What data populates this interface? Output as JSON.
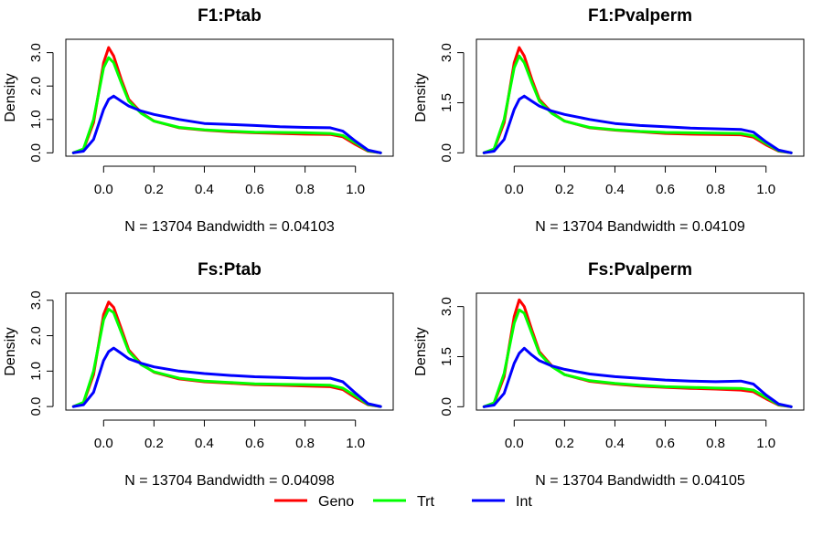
{
  "colors": {
    "Geno": "#ff0000",
    "Trt": "#00ff00",
    "Int": "#0000ff"
  },
  "legend": {
    "placement": "bottom-center",
    "entries": [
      {
        "name": "Geno",
        "color": "#ff0000"
      },
      {
        "name": "Trt",
        "color": "#00ff00"
      },
      {
        "name": "Int",
        "color": "#0000ff"
      }
    ]
  },
  "chart_data": [
    {
      "type": "line",
      "title": "F1:Ptab",
      "xlabel": "N = 13704   Bandwidth = 0.04103",
      "ylabel": "Density",
      "xlim": [
        -0.15,
        1.15
      ],
      "ylim": [
        -0.1,
        3.4
      ],
      "xticks": [
        "0.0",
        "0.2",
        "0.4",
        "0.6",
        "0.8",
        "1.0"
      ],
      "yticks": [
        "0.0",
        "1.0",
        "2.0",
        "3.0"
      ],
      "x": [
        -0.12,
        -0.08,
        -0.04,
        0.0,
        0.02,
        0.04,
        0.07,
        0.1,
        0.15,
        0.2,
        0.3,
        0.4,
        0.5,
        0.6,
        0.7,
        0.8,
        0.9,
        0.95,
        1.0,
        1.05,
        1.1
      ],
      "series": [
        {
          "name": "Geno",
          "values": [
            0.0,
            0.1,
            0.9,
            2.7,
            3.15,
            2.9,
            2.2,
            1.6,
            1.2,
            0.95,
            0.75,
            0.68,
            0.63,
            0.6,
            0.58,
            0.56,
            0.55,
            0.48,
            0.25,
            0.05,
            0.0
          ]
        },
        {
          "name": "Trt",
          "values": [
            0.0,
            0.12,
            1.0,
            2.55,
            2.85,
            2.7,
            2.1,
            1.55,
            1.18,
            0.95,
            0.76,
            0.69,
            0.65,
            0.62,
            0.61,
            0.6,
            0.58,
            0.52,
            0.3,
            0.06,
            0.0
          ]
        },
        {
          "name": "Int",
          "values": [
            0.0,
            0.05,
            0.4,
            1.3,
            1.6,
            1.7,
            1.55,
            1.4,
            1.25,
            1.15,
            1.0,
            0.88,
            0.85,
            0.82,
            0.78,
            0.76,
            0.75,
            0.65,
            0.35,
            0.08,
            0.0
          ]
        }
      ]
    },
    {
      "type": "line",
      "title": "F1:Pvalperm",
      "xlabel": "N = 13704   Bandwidth = 0.04109",
      "ylabel": "Density",
      "xlim": [
        -0.15,
        1.15
      ],
      "ylim": [
        -0.1,
        3.4
      ],
      "xticks": [
        "0.0",
        "0.2",
        "0.4",
        "0.6",
        "0.8",
        "1.0"
      ],
      "yticks": [
        "0.0",
        "1.5",
        "3.0"
      ],
      "x": [
        -0.12,
        -0.08,
        -0.04,
        0.0,
        0.02,
        0.04,
        0.07,
        0.1,
        0.15,
        0.2,
        0.3,
        0.4,
        0.5,
        0.6,
        0.7,
        0.8,
        0.9,
        0.95,
        1.0,
        1.05,
        1.1
      ],
      "series": [
        {
          "name": "Geno",
          "values": [
            0.0,
            0.1,
            0.9,
            2.7,
            3.15,
            2.9,
            2.2,
            1.6,
            1.2,
            0.95,
            0.75,
            0.68,
            0.63,
            0.58,
            0.56,
            0.55,
            0.54,
            0.47,
            0.24,
            0.05,
            0.0
          ]
        },
        {
          "name": "Trt",
          "values": [
            0.0,
            0.12,
            1.0,
            2.55,
            2.9,
            2.7,
            2.1,
            1.55,
            1.18,
            0.95,
            0.76,
            0.69,
            0.64,
            0.61,
            0.6,
            0.59,
            0.58,
            0.51,
            0.28,
            0.06,
            0.0
          ]
        },
        {
          "name": "Int",
          "values": [
            0.0,
            0.05,
            0.4,
            1.3,
            1.6,
            1.7,
            1.55,
            1.4,
            1.25,
            1.15,
            1.0,
            0.88,
            0.82,
            0.78,
            0.74,
            0.72,
            0.7,
            0.62,
            0.33,
            0.08,
            0.0
          ]
        }
      ]
    },
    {
      "type": "line",
      "title": "Fs:Ptab",
      "xlabel": "N = 13704   Bandwidth = 0.04098",
      "ylabel": "Density",
      "xlim": [
        -0.15,
        1.15
      ],
      "ylim": [
        -0.1,
        3.2
      ],
      "xticks": [
        "0.0",
        "0.2",
        "0.4",
        "0.6",
        "0.8",
        "1.0"
      ],
      "yticks": [
        "0.0",
        "1.0",
        "2.0",
        "3.0"
      ],
      "x": [
        -0.12,
        -0.08,
        -0.04,
        0.0,
        0.02,
        0.04,
        0.07,
        0.1,
        0.15,
        0.2,
        0.3,
        0.4,
        0.5,
        0.6,
        0.7,
        0.8,
        0.9,
        0.95,
        1.0,
        1.05,
        1.1
      ],
      "series": [
        {
          "name": "Geno",
          "values": [
            0.0,
            0.1,
            0.9,
            2.6,
            2.95,
            2.8,
            2.2,
            1.6,
            1.2,
            0.97,
            0.78,
            0.7,
            0.66,
            0.62,
            0.6,
            0.58,
            0.56,
            0.48,
            0.25,
            0.05,
            0.0
          ]
        },
        {
          "name": "Trt",
          "values": [
            0.0,
            0.12,
            1.0,
            2.45,
            2.75,
            2.65,
            2.1,
            1.55,
            1.18,
            0.98,
            0.8,
            0.72,
            0.68,
            0.64,
            0.63,
            0.62,
            0.6,
            0.52,
            0.3,
            0.06,
            0.0
          ]
        },
        {
          "name": "Int",
          "values": [
            0.0,
            0.05,
            0.4,
            1.3,
            1.55,
            1.65,
            1.5,
            1.35,
            1.22,
            1.12,
            1.0,
            0.93,
            0.88,
            0.84,
            0.82,
            0.8,
            0.8,
            0.7,
            0.38,
            0.08,
            0.0
          ]
        }
      ]
    },
    {
      "type": "line",
      "title": "Fs:Pvalperm",
      "xlabel": "N = 13704   Bandwidth = 0.04105",
      "ylabel": "Density",
      "xlim": [
        -0.15,
        1.15
      ],
      "ylim": [
        -0.1,
        3.4
      ],
      "xticks": [
        "0.0",
        "0.2",
        "0.4",
        "0.6",
        "0.8",
        "1.0"
      ],
      "yticks": [
        "0.0",
        "1.5",
        "3.0"
      ],
      "x": [
        -0.12,
        -0.08,
        -0.04,
        0.0,
        0.02,
        0.04,
        0.07,
        0.1,
        0.15,
        0.2,
        0.3,
        0.4,
        0.5,
        0.6,
        0.7,
        0.8,
        0.9,
        0.95,
        1.0,
        1.05,
        1.1
      ],
      "series": [
        {
          "name": "Geno",
          "values": [
            0.0,
            0.1,
            0.9,
            2.7,
            3.2,
            3.0,
            2.3,
            1.65,
            1.22,
            0.96,
            0.76,
            0.68,
            0.62,
            0.58,
            0.55,
            0.53,
            0.5,
            0.45,
            0.24,
            0.05,
            0.0
          ]
        },
        {
          "name": "Trt",
          "values": [
            0.0,
            0.12,
            1.0,
            2.5,
            2.9,
            2.8,
            2.2,
            1.6,
            1.2,
            0.96,
            0.78,
            0.7,
            0.64,
            0.6,
            0.58,
            0.56,
            0.55,
            0.5,
            0.28,
            0.06,
            0.0
          ]
        },
        {
          "name": "Int",
          "values": [
            0.0,
            0.05,
            0.4,
            1.3,
            1.6,
            1.75,
            1.55,
            1.38,
            1.22,
            1.12,
            0.98,
            0.9,
            0.85,
            0.8,
            0.77,
            0.75,
            0.77,
            0.68,
            0.35,
            0.08,
            0.0
          ]
        }
      ]
    }
  ]
}
